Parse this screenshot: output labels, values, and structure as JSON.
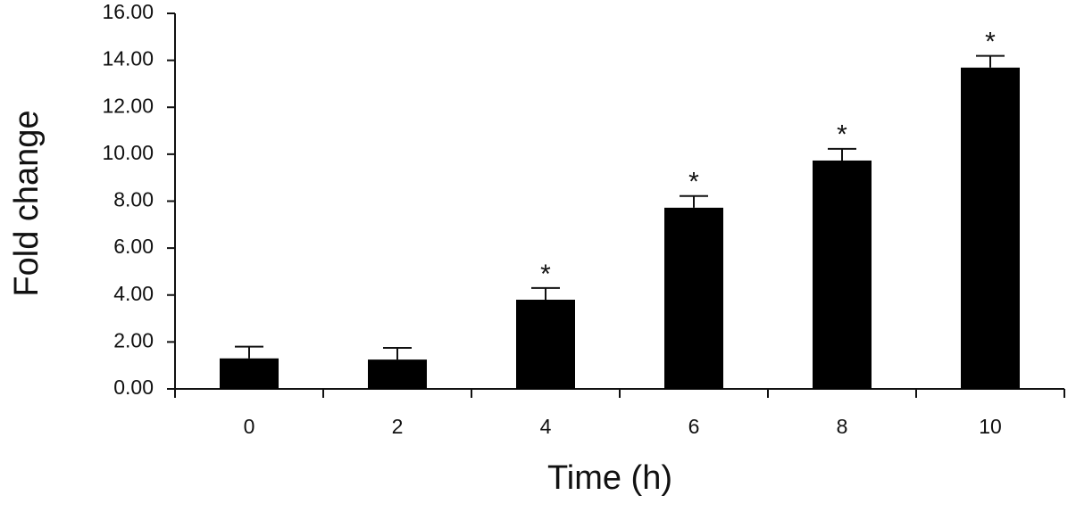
{
  "chart_data": {
    "type": "bar",
    "x_label": "Time (h)",
    "y_label": "Fold change",
    "categories": [
      "0",
      "2",
      "4",
      "6",
      "8",
      "10"
    ],
    "values": [
      1.3,
      1.25,
      3.8,
      7.72,
      9.73,
      13.69
    ],
    "errors": [
      0.5,
      0.5,
      0.5,
      0.5,
      0.5,
      0.5
    ],
    "markers": [
      null,
      null,
      "*",
      "*",
      "*",
      "*"
    ],
    "color": "#000000",
    "ylim": [
      0,
      16
    ],
    "yticks": [
      {
        "value": 0,
        "label": "0.00"
      },
      {
        "value": 2,
        "label": "2.00"
      },
      {
        "value": 4,
        "label": "4.00"
      },
      {
        "value": 6,
        "label": "6.00"
      },
      {
        "value": 8,
        "label": "8.00"
      },
      {
        "value": 10,
        "label": "10.00"
      },
      {
        "value": 12,
        "label": "12.00"
      },
      {
        "value": 14,
        "label": "14.00"
      },
      {
        "value": 16,
        "label": "16.00"
      }
    ],
    "grid": false
  }
}
